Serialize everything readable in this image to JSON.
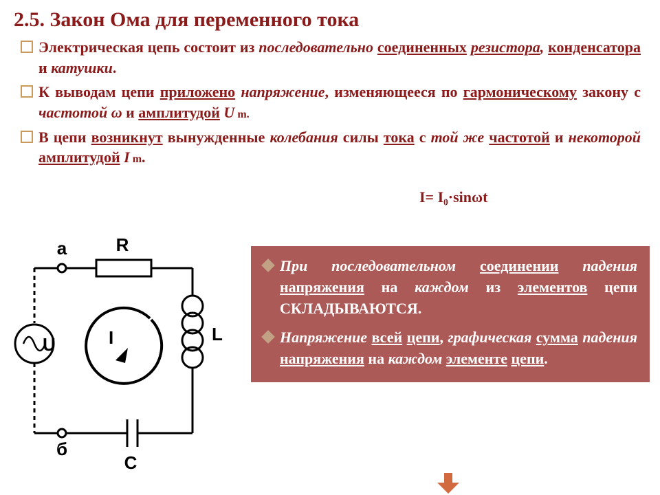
{
  "title": "2.5. Закон Ома для переменного тока",
  "bullets": [
    {
      "html": "<span class='b'>Электрическая цепь состоит из </span><span class='bi'>последовательно</span><span class='b'> </span><span class='bu'>соединенных</span><span class='b'> </span><span class='biu'>резистора</span><span class='bi'>,</span><span class='b'> </span><span class='bu'>конденсатора</span><span class='b'> и </span><span class='bi'>катушки</span><span class='b'>.</span>"
    },
    {
      "html": "<span class='b'>К выводам цепи </span><span class='bu'>приложено</span><span class='b'> </span><span class='bi'>напряжение</span><span class='b'>, изменяющееся по </span><span class='bu'>гармоническому</span><span class='b'> закону с </span><span class='bi'>частотой ω</span><span class='b'> и </span><span class='bu'>амплитудой</span><span class='b'> </span><span class='bi'>U</span><span class='b' style='font-size:16px'> m.</span>"
    },
    {
      "html": "<span class='b'>В цепи </span><span class='bu'>возникнут</span><span class='b'> вынужденные </span><span class='bi'>колебания</span><span class='b'> силы </span><span class='bu'>тока</span><span class='b'> с </span><span class='bi'>той же</span><span class='b'> </span><span class='bu'>частотой</span><span class='b'> и </span><span class='bi'>некоторой</span><span class='b'> </span><span class='bu'>амплитудой</span><span class='b'> </span><span class='bi'>I</span><span class='b' style='font-size:16px'> m</span><span class='b'>.</span>"
    }
  ],
  "formula": "I= I₀·sinωt",
  "circuit": {
    "labels": {
      "a": "а",
      "b": "б",
      "R": "R",
      "L": "L",
      "C": "C",
      "U": "U",
      "I": "I"
    },
    "stroke": "#000000",
    "stroke_width": 3
  },
  "info": [
    {
      "html": "<span class='i'>При последовательном </span><span class='wu'>соединении</span> <span class='i'>падения</span> <span class='wu'>напряжения</span> на <span class='i'>каждом</span> из <span class='wu'>элементов</span> цепи СКЛАДЫВАЮТСЯ."
    },
    {
      "html": "<span class='i'>Напряжение</span> <span class='wu'>всей</span> <span class='wu'>цепи</span>, <span class='i'>графическая</span> <span class='wu'>сумма</span> <span class='i'>падения</span> <span class='wu'>напряжения</span> на <span class='i'>каждом</span> <span class='wu'>элементе</span> <span class='wu'>цепи</span>."
    }
  ],
  "colors": {
    "title": "#8B1A1A",
    "box_bg": "#AC5A57",
    "bullet_border": "#C99A5B",
    "diamond": "#C2A184",
    "arrow": "#D16A3F"
  }
}
